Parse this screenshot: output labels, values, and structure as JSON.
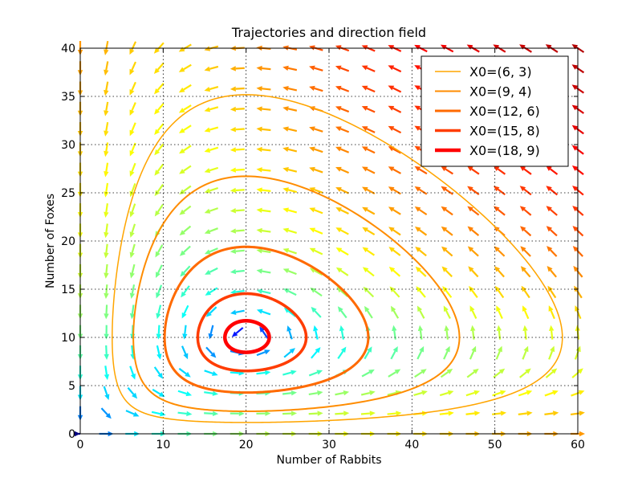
{
  "chart_data": {
    "type": "line",
    "title": "Trajectories and direction field",
    "xlabel": "Number of Rabbits",
    "ylabel": "Number of Foxes",
    "xlim": [
      0,
      60
    ],
    "ylim": [
      0,
      40
    ],
    "xticks": [
      0,
      10,
      20,
      30,
      40,
      50,
      60
    ],
    "yticks": [
      0,
      5,
      10,
      15,
      20,
      25,
      30,
      35,
      40
    ],
    "grid": true,
    "legend_position": "top-right",
    "equilibrium": [
      20,
      10
    ],
    "series": [
      {
        "name": "X0=(6, 3)",
        "color": "#ffa500",
        "rabbits_range": [
          3.6,
          58.0
        ],
        "foxes_range": [
          1.1,
          35.2
        ]
      },
      {
        "name": "X0=(9, 4)",
        "color": "#ff8c00",
        "rabbits_range": [
          6.6,
          44.3
        ],
        "foxes_range": [
          2.5,
          25.7
        ]
      },
      {
        "name": "X0=(12, 6)",
        "color": "#ff6a00",
        "rabbits_range": [
          10.0,
          34.9
        ],
        "foxes_range": [
          4.3,
          19.5
        ]
      },
      {
        "name": "X0=(15, 8)",
        "color": "#ff3c00",
        "rabbits_range": [
          13.6,
          28.2
        ],
        "foxes_range": [
          6.3,
          15.1
        ]
      },
      {
        "name": "X0=(18, 9)",
        "color": "#ff0000",
        "rabbits_range": [
          17.2,
          22.9
        ],
        "foxes_range": [
          8.4,
          11.9
        ]
      }
    ],
    "direction_field": {
      "model": "Lotka-Volterra",
      "grid_points": 20,
      "colormap": "jet",
      "arrows": "normalized"
    }
  }
}
